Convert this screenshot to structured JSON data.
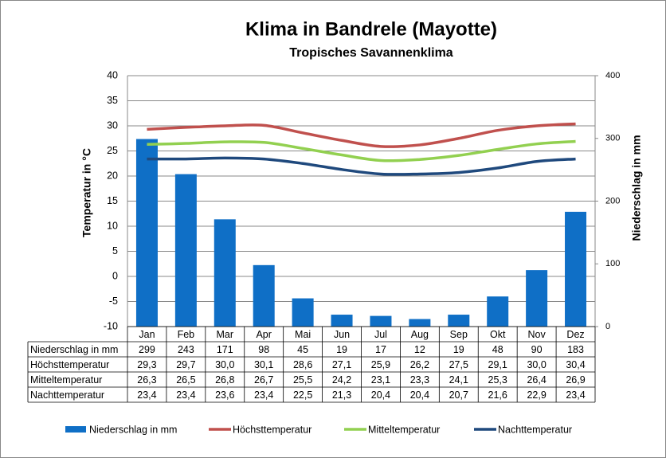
{
  "chart_data": {
    "type": "bar-line",
    "title": "Klima in Bandrele (Mayotte)",
    "subtitle": "Tropisches Savannenklima",
    "y_label": "Temperatur in °C",
    "y2_label": "Niederschlag in mm",
    "categories": [
      "Jan",
      "Feb",
      "Mar",
      "Apr",
      "Mai",
      "Jun",
      "Jul",
      "Aug",
      "Sep",
      "Okt",
      "Nov",
      "Dez"
    ],
    "ylim": [
      -10,
      40
    ],
    "yticks": [
      -10,
      -5,
      0,
      5,
      10,
      15,
      20,
      25,
      30,
      35,
      40
    ],
    "y2lim": [
      0,
      400
    ],
    "y2ticks": [
      0,
      100,
      200,
      300,
      400
    ],
    "grid": true,
    "series": [
      {
        "name": "Niederschlag in mm",
        "type": "bar",
        "axis": "y2",
        "color": "#0f6fc6",
        "values": [
          299,
          243,
          171,
          98,
          45,
          19,
          17,
          12,
          19,
          48,
          90,
          183
        ]
      },
      {
        "name": "Höchsttemperatur",
        "type": "line",
        "color": "#c0504d",
        "values": [
          29.3,
          29.7,
          30.0,
          30.1,
          28.6,
          27.1,
          25.9,
          26.2,
          27.5,
          29.1,
          30.0,
          30.4
        ],
        "value_labels": [
          "29,3",
          "29,7",
          "30,0",
          "30,1",
          "28,6",
          "27,1",
          "25,9",
          "26,2",
          "27,5",
          "29,1",
          "30,0",
          "30,4"
        ]
      },
      {
        "name": "Mitteltemperatur",
        "type": "line",
        "color": "#92d050",
        "values": [
          26.3,
          26.5,
          26.8,
          26.7,
          25.5,
          24.2,
          23.1,
          23.3,
          24.1,
          25.3,
          26.4,
          26.9
        ],
        "value_labels": [
          "26,3",
          "26,5",
          "26,8",
          "26,7",
          "25,5",
          "24,2",
          "23,1",
          "23,3",
          "24,1",
          "25,3",
          "26,4",
          "26,9"
        ]
      },
      {
        "name": "Nachttemperatur",
        "type": "line",
        "color": "#1f497d",
        "values": [
          23.4,
          23.4,
          23.6,
          23.4,
          22.5,
          21.3,
          20.4,
          20.4,
          20.7,
          21.6,
          22.9,
          23.4
        ],
        "value_labels": [
          "23,4",
          "23,4",
          "23,6",
          "23,4",
          "22,5",
          "21,3",
          "20,4",
          "20,4",
          "20,7",
          "21,6",
          "22,9",
          "23,4"
        ]
      }
    ]
  }
}
